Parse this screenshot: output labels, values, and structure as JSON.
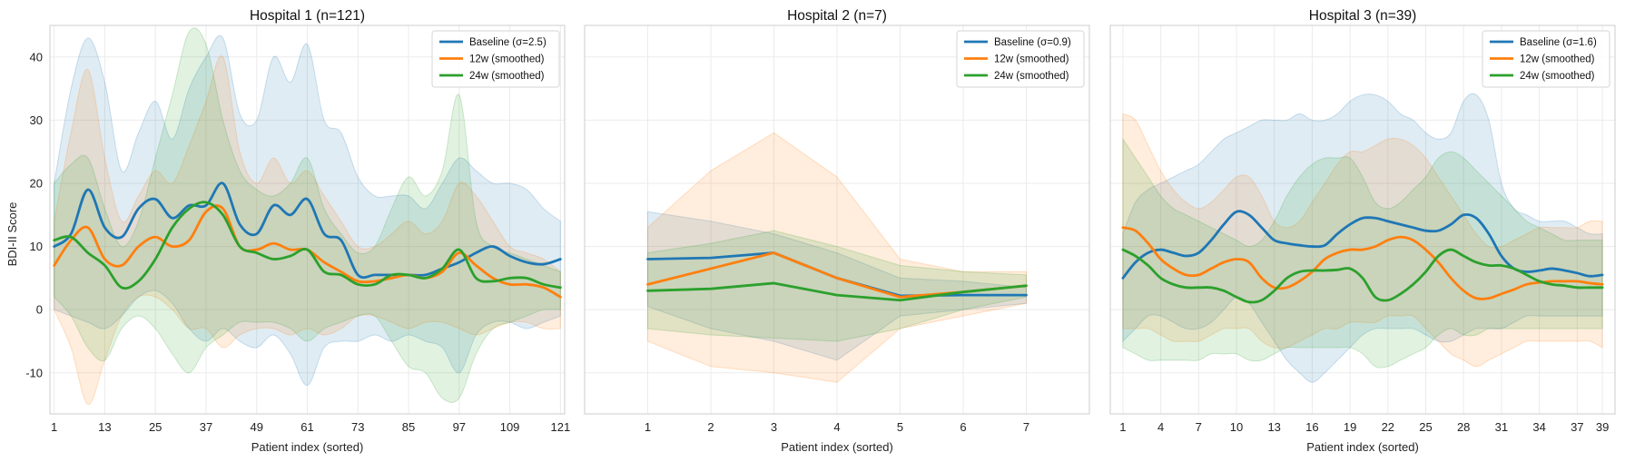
{
  "figure": {
    "ylabel": "BDI-II Score",
    "xlabel": "Patient index (sorted)"
  },
  "chart_data": [
    {
      "type": "line",
      "title": "Hospital 1 (n=121)",
      "xlabel": "Patient index (sorted)",
      "ylabel": "BDI-II Score",
      "xlim": [
        0,
        122
      ],
      "ylim": [
        -16.5,
        45
      ],
      "xticks": [
        1,
        13,
        25,
        37,
        49,
        61,
        73,
        85,
        97,
        109,
        121
      ],
      "yticks": [
        -10,
        0,
        10,
        20,
        30,
        40
      ],
      "grid": true,
      "legend": "top-right",
      "series": [
        {
          "name": "Baseline (σ=2.5)",
          "color": "#1f77b4",
          "x": [
            1,
            5,
            9,
            13,
            17,
            21,
            25,
            29,
            33,
            37,
            41,
            45,
            49,
            53,
            57,
            61,
            65,
            69,
            73,
            77,
            81,
            85,
            89,
            93,
            97,
            101,
            105,
            109,
            113,
            117,
            121
          ],
          "y": [
            10,
            12,
            19,
            13,
            11.5,
            16,
            17.5,
            14.5,
            16.5,
            16.5,
            20,
            13.5,
            12,
            16.5,
            15,
            17.5,
            12,
            11,
            5.5,
            5.5,
            5.5,
            5.5,
            5.5,
            6.5,
            7.5,
            9,
            10,
            8.5,
            7.5,
            7.2,
            8
          ],
          "upper": [
            20,
            35,
            43,
            36,
            22,
            28,
            33,
            27,
            35,
            40,
            43,
            31,
            30,
            40,
            36,
            42,
            30,
            28,
            21,
            18,
            18,
            18,
            16,
            20,
            24,
            22,
            20,
            20,
            19,
            16,
            14
          ],
          "lower": [
            0,
            -1,
            -2,
            -3,
            -1,
            2,
            3,
            1,
            -3,
            -5,
            -3,
            -5,
            -6,
            -4,
            -7,
            -12,
            -6,
            -5,
            -5,
            -4,
            -5,
            -4,
            -5,
            -6,
            -10,
            -4,
            -2,
            -2,
            -3,
            -2,
            -1
          ]
        },
        {
          "name": "12w (smoothed)",
          "color": "#ff7f0e",
          "x": [
            1,
            5,
            9,
            13,
            17,
            21,
            25,
            29,
            33,
            37,
            41,
            45,
            49,
            53,
            57,
            61,
            65,
            69,
            73,
            77,
            81,
            85,
            89,
            93,
            97,
            101,
            105,
            109,
            113,
            117,
            121
          ],
          "y": [
            7,
            11,
            13,
            8,
            7,
            10,
            11.5,
            10,
            11,
            15.5,
            16,
            10,
            9.5,
            10.5,
            9.5,
            9.5,
            7.5,
            6,
            4.5,
            4.5,
            5,
            5.5,
            5,
            6,
            9,
            7,
            5,
            4,
            4,
            3.5,
            2
          ],
          "upper": [
            14,
            28,
            38,
            24,
            14,
            18,
            22,
            20,
            26,
            33,
            40,
            25,
            20,
            24,
            20,
            22,
            18,
            14,
            10,
            10,
            12,
            14,
            12,
            14,
            20,
            18,
            14,
            10,
            9,
            8,
            6
          ],
          "lower": [
            0,
            -6,
            -15,
            -8,
            -1,
            2,
            2,
            0,
            -3,
            -3,
            -6,
            -4,
            -3,
            -3,
            -4,
            -3,
            -4,
            -3,
            -1,
            -1,
            -2,
            -3,
            -2,
            -2,
            -3,
            -4,
            -3,
            -2,
            -2,
            -3,
            -3
          ]
        },
        {
          "name": "24w (smoothed)",
          "color": "#2ca02c",
          "x": [
            1,
            5,
            9,
            13,
            17,
            21,
            25,
            29,
            33,
            37,
            41,
            45,
            49,
            53,
            57,
            61,
            65,
            69,
            73,
            77,
            81,
            85,
            89,
            93,
            97,
            101,
            105,
            109,
            113,
            117,
            121
          ],
          "y": [
            11,
            11.5,
            9,
            7,
            3.5,
            4.5,
            8,
            13,
            16,
            17,
            15,
            10,
            9,
            8,
            8.5,
            9.5,
            6,
            5.5,
            4,
            4,
            5.5,
            5.5,
            5,
            6.5,
            9.5,
            5,
            4.5,
            5,
            5,
            4,
            3.5
          ],
          "upper": [
            20,
            23,
            24,
            16,
            10,
            14,
            24,
            34,
            44,
            42,
            30,
            22,
            19,
            18,
            20,
            24,
            16,
            12,
            9,
            10,
            16,
            21,
            18,
            22,
            34,
            14,
            10,
            9,
            8,
            7,
            6
          ],
          "lower": [
            2,
            -1,
            -6,
            -8,
            -3,
            -1,
            -3,
            -7,
            -10,
            -6,
            -4,
            -2,
            -2,
            -2,
            -3,
            -5,
            -3,
            -2,
            -1,
            -1,
            -5,
            -9,
            -10,
            -14,
            -14,
            -7,
            -3,
            -2,
            -1,
            0,
            0
          ]
        }
      ]
    },
    {
      "type": "line",
      "title": "Hospital 2 (n=7)",
      "xlabel": "Patient index (sorted)",
      "xlim": [
        0,
        8
      ],
      "ylim": [
        -16.5,
        45
      ],
      "xticks": [
        1,
        2,
        3,
        4,
        5,
        6,
        7
      ],
      "grid": true,
      "legend": "top-right",
      "series": [
        {
          "name": "Baseline (σ=0.9)",
          "color": "#1f77b4",
          "x": [
            1,
            2,
            3,
            4,
            5,
            6,
            7
          ],
          "y": [
            8,
            8.2,
            9,
            5,
            2.2,
            2.3,
            2.3
          ],
          "upper": [
            15.5,
            14,
            12,
            9,
            5,
            4.5,
            3.5
          ],
          "lower": [
            0.5,
            -3,
            -5,
            -8,
            -1,
            0,
            1
          ]
        },
        {
          "name": "12w (smoothed)",
          "color": "#ff7f0e",
          "x": [
            1,
            2,
            3,
            4,
            5,
            6,
            7
          ],
          "y": [
            4,
            6.5,
            9,
            5,
            2,
            2.8,
            3.8
          ],
          "upper": [
            13,
            22,
            28,
            21,
            8,
            6,
            6
          ],
          "lower": [
            -5,
            -9,
            -10,
            -11.5,
            -3,
            -1,
            1
          ]
        },
        {
          "name": "24w (smoothed)",
          "color": "#2ca02c",
          "x": [
            1,
            2,
            3,
            4,
            5,
            6,
            7
          ],
          "y": [
            3,
            3.3,
            4.2,
            2.3,
            1.5,
            2.8,
            3.8
          ],
          "upper": [
            9,
            10.5,
            12.5,
            10,
            7,
            6,
            5.5
          ],
          "lower": [
            -3,
            -4,
            -4.5,
            -5,
            -3,
            0,
            2
          ]
        }
      ]
    },
    {
      "type": "line",
      "title": "Hospital 3 (n=39)",
      "xlabel": "Patient index (sorted)",
      "xlim": [
        0,
        40
      ],
      "ylim": [
        -16.5,
        45
      ],
      "xticks": [
        1,
        4,
        7,
        10,
        13,
        16,
        19,
        22,
        25,
        28,
        31,
        34,
        37,
        39
      ],
      "grid": true,
      "legend": "top-right",
      "series": [
        {
          "name": "Baseline (σ=1.6)",
          "color": "#1f77b4",
          "x": [
            1,
            2,
            3,
            4,
            5,
            6,
            7,
            8,
            9,
            10,
            11,
            12,
            13,
            14,
            15,
            16,
            17,
            18,
            19,
            20,
            21,
            22,
            23,
            24,
            25,
            26,
            27,
            28,
            29,
            30,
            31,
            32,
            33,
            34,
            35,
            36,
            37,
            38,
            39
          ],
          "y": [
            5,
            7.5,
            9,
            9.5,
            9,
            8.5,
            9,
            11,
            13.5,
            15.5,
            15,
            13,
            11,
            10.5,
            10.2,
            10,
            10.2,
            12,
            13.5,
            14.5,
            14.5,
            14,
            13.5,
            13,
            12.5,
            12.5,
            13.5,
            15,
            14.5,
            12,
            8.5,
            6.5,
            6,
            6.2,
            6.5,
            6.2,
            5.8,
            5.3,
            5.5
          ],
          "upper": [
            12,
            17,
            19,
            20,
            21,
            22,
            23,
            25,
            27,
            28,
            29,
            30,
            30,
            30,
            31,
            30,
            30,
            31,
            33,
            34,
            34,
            33,
            31,
            30,
            28,
            27,
            28,
            33,
            34,
            30,
            20,
            16,
            15,
            14,
            14,
            14,
            13,
            12,
            12
          ],
          "lower": [
            -5,
            -3,
            -1,
            -1,
            -2,
            -3,
            -3,
            -2,
            0,
            2,
            1,
            -2,
            -5,
            -8,
            -10,
            -11.5,
            -10,
            -8,
            -6,
            -4,
            -3,
            -3,
            -3,
            -3,
            -4,
            -5,
            -5,
            -4,
            -3,
            -3,
            -3,
            -2,
            -1,
            -1,
            -1,
            -1,
            -1,
            -1,
            -1
          ]
        },
        {
          "name": "12w (smoothed)",
          "color": "#ff7f0e",
          "x": [
            1,
            2,
            3,
            4,
            5,
            6,
            7,
            8,
            9,
            10,
            11,
            12,
            13,
            14,
            15,
            16,
            17,
            18,
            19,
            20,
            21,
            22,
            23,
            24,
            25,
            26,
            27,
            28,
            29,
            30,
            31,
            32,
            33,
            34,
            35,
            36,
            37,
            38,
            39
          ],
          "y": [
            13,
            12.5,
            10.5,
            8,
            6.5,
            5.5,
            5.5,
            6.5,
            7.5,
            8,
            7.5,
            5,
            3.5,
            3.5,
            4.5,
            6,
            8,
            9,
            9.5,
            9.5,
            10,
            11,
            11.5,
            11,
            9.5,
            7.5,
            5,
            3,
            1.8,
            1.8,
            2.5,
            3.2,
            4,
            4.3,
            4.5,
            4.5,
            4.5,
            4.2,
            4
          ],
          "upper": [
            31,
            30,
            26,
            22,
            19,
            17,
            16,
            17,
            19,
            21,
            21,
            18,
            14,
            13,
            14,
            17,
            20,
            23,
            25,
            25,
            26,
            27,
            27,
            26,
            24,
            21,
            18,
            15,
            12,
            10,
            10,
            11,
            12,
            13,
            13,
            13,
            13,
            14,
            14
          ],
          "lower": [
            -3,
            -3,
            -3,
            -4,
            -5,
            -5,
            -5,
            -4,
            -3,
            -3,
            -3,
            -5,
            -6,
            -6,
            -5,
            -4,
            -3,
            -3,
            -2,
            -2,
            -2,
            -1,
            -1,
            -1,
            -3,
            -5,
            -7,
            -8,
            -9,
            -8,
            -7,
            -6,
            -5,
            -5,
            -5,
            -5,
            -5,
            -5,
            -6
          ]
        },
        {
          "name": "24w (smoothed)",
          "color": "#2ca02c",
          "x": [
            1,
            2,
            3,
            4,
            5,
            6,
            7,
            8,
            9,
            10,
            11,
            12,
            13,
            14,
            15,
            16,
            17,
            18,
            19,
            20,
            21,
            22,
            23,
            24,
            25,
            26,
            27,
            28,
            29,
            30,
            31,
            32,
            33,
            34,
            35,
            36,
            37,
            38,
            39
          ],
          "y": [
            9.5,
            8.5,
            7,
            5,
            4,
            3.5,
            3.5,
            3.5,
            3,
            2,
            1.2,
            1.5,
            3,
            5,
            6,
            6.2,
            6.2,
            6.3,
            6.5,
            5,
            2,
            1.5,
            2.5,
            4,
            6,
            8.5,
            9.5,
            8.5,
            7.5,
            7,
            7,
            6.5,
            5.5,
            4.5,
            4,
            3.8,
            3.5,
            3.5,
            3.5
          ],
          "upper": [
            27,
            24,
            21,
            18,
            16,
            15,
            14,
            13,
            12,
            11,
            10,
            11,
            14,
            18,
            21,
            23,
            24,
            24,
            24,
            21,
            17,
            16,
            17,
            19,
            21,
            24,
            25,
            24,
            22,
            20,
            18,
            16,
            14,
            13,
            12,
            11,
            11,
            11,
            11
          ],
          "lower": [
            -6,
            -7,
            -8,
            -8,
            -8,
            -8,
            -8,
            -7,
            -7,
            -7,
            -8,
            -8,
            -7,
            -6,
            -6,
            -6,
            -6,
            -6,
            -6,
            -7,
            -9,
            -9,
            -8,
            -7,
            -6,
            -4,
            -3,
            -4,
            -4,
            -3,
            -3,
            -3,
            -3,
            -3,
            -3,
            -3,
            -3,
            -3,
            -3
          ]
        }
      ]
    }
  ]
}
